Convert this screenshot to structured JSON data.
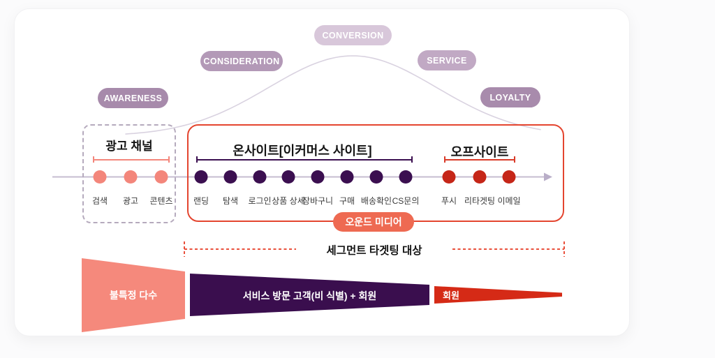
{
  "journey_stages": [
    {
      "label": "AWARENESS",
      "color": "#a78aab"
    },
    {
      "label": "CONSIDERATION",
      "color": "#b399b7"
    },
    {
      "label": "CONVERSION",
      "color": "#d8c7da"
    },
    {
      "label": "SERVICE",
      "color": "#c1a9c4"
    },
    {
      "label": "LOYALTY",
      "color": "#a88bac"
    }
  ],
  "sections": {
    "ad": {
      "title": "광고 채널",
      "dot_color": "#f3867b",
      "items": [
        "검색",
        "광고",
        "콘텐츠"
      ]
    },
    "onsite": {
      "title": "온사이트[이커머스 사이트]",
      "dot_color": "#3b0f50",
      "items": [
        "랜딩",
        "탐색",
        "로그인",
        "상품 상세",
        "장바구니",
        "구매",
        "배송확인",
        "CS문의"
      ]
    },
    "offsite": {
      "title": "오프사이트",
      "dot_color": "#c52618",
      "items": [
        "푸시",
        "리타겟팅",
        "이메일"
      ]
    }
  },
  "owned_media": {
    "label": "오운드 미디어",
    "color": "#ee6a52"
  },
  "segment": {
    "label": "세그먼트 타겟팅 대상",
    "line_color": "#e9503c"
  },
  "funnel": [
    {
      "label": "불특정 다수",
      "color": "#f5897c"
    },
    {
      "label": "서비스 방문 고객(비 식별) + 회원",
      "color": "#3a0e4e"
    },
    {
      "label": "회원",
      "color": "#d52a16"
    }
  ]
}
